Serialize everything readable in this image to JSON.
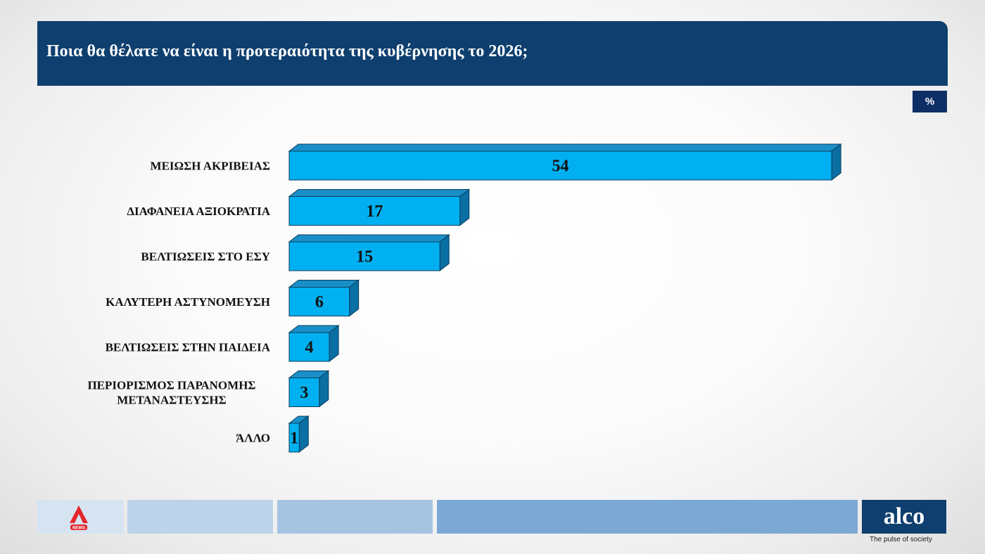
{
  "header": {
    "title": "Ποια θα θέλατε να είναι η προτεραιότητα της κυβέρνησης το 2026;"
  },
  "unit_badge": "%",
  "chart_data": {
    "type": "bar",
    "orientation": "horizontal",
    "categories": [
      "ΜΕΙΩΣΗ ΑΚΡΙΒΕΙΑΣ",
      "ΔΙΑΦΑΝΕΙΑ ΑΞΙΟΚΡΑΤΙΑ",
      "ΒΕΛΤΙΩΣΕΙΣ ΣΤΟ ΕΣΥ",
      "ΚΑΛΥΤΕΡΗ ΑΣΤΥΝΟΜΕΥΣΗ",
      "ΒΕΛΤΙΩΣΕΙΣ ΣΤΗΝ ΠΑΙΔΕΙΑ",
      "ΠΕΡΙΟΡΙΣΜΟΣ ΠΑΡΑΝΟΜΗΣ ΜΕΤΑΝΑΣΤΕΥΣΗΣ",
      "ΆΛΛΟ"
    ],
    "category_lines": [
      [
        "ΜΕΙΩΣΗ ΑΚΡΙΒΕΙΑΣ"
      ],
      [
        "ΔΙΑΦΑΝΕΙΑ ΑΞΙΟΚΡΑΤΙΑ"
      ],
      [
        "ΒΕΛΤΙΩΣΕΙΣ ΣΤΟ ΕΣΥ"
      ],
      [
        "ΚΑΛΥΤΕΡΗ ΑΣΤΥΝΟΜΕΥΣΗ"
      ],
      [
        "ΒΕΛΤΙΩΣΕΙΣ ΣΤΗΝ ΠΑΙΔΕΙΑ"
      ],
      [
        "ΠΕΡΙΟΡΙΣΜΟΣ ΠΑΡΑΝΟΜΗΣ",
        "ΜΕΤΑΝΑΣΤΕΥΣΗΣ"
      ],
      [
        "ΆΛΛΟ"
      ]
    ],
    "values": [
      54,
      17,
      15,
      6,
      4,
      3,
      1
    ],
    "unit": "%",
    "data_labels": true,
    "style": "3d",
    "colors": {
      "front": "#00b0f0",
      "top": "#1a8fc7",
      "side": "#0a6fa3",
      "stroke": "#0b3c5d"
    },
    "grid": false,
    "legend": "none"
  },
  "footer": {
    "left_logo_icon": "alpha-news-logo",
    "left_logo_text": "NEWS",
    "brand": "alco",
    "tagline": "The pulse of society"
  }
}
